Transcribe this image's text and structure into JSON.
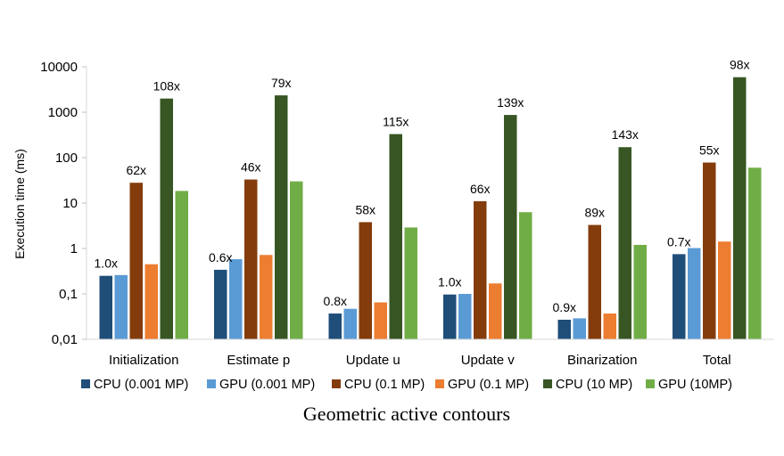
{
  "chart_data": {
    "type": "bar",
    "title": "",
    "caption": "Geometric active contours",
    "xlabel": "",
    "ylabel": "Execution time (ms)",
    "yscale": "log",
    "ylim": [
      0.01,
      10000
    ],
    "yticks": [
      0.01,
      0.1,
      1,
      10,
      100,
      1000,
      10000
    ],
    "ytick_labels": [
      "0,01",
      "0,1",
      "1",
      "10",
      "100",
      "1000",
      "10000"
    ],
    "grid": false,
    "legend_position": "bottom",
    "categories": [
      "Initialization",
      "Estimate p",
      "Update u",
      "Update v",
      "Binarization",
      "Total"
    ],
    "series": [
      {
        "name": "CPU (0.001 MP)",
        "color": "#1f4e79",
        "values": [
          0.25,
          0.34,
          0.037,
          0.097,
          0.027,
          0.75
        ]
      },
      {
        "name": "GPU (0.001 MP)",
        "color": "#5b9bd5",
        "values": [
          0.26,
          0.58,
          0.047,
          0.1,
          0.029,
          1.02
        ]
      },
      {
        "name": "CPU (0.1 MP)",
        "color": "#843c0c",
        "values": [
          28,
          33,
          3.8,
          11,
          3.3,
          78
        ]
      },
      {
        "name": "GPU (0.1 MP)",
        "color": "#ed7d31",
        "values": [
          0.45,
          0.72,
          0.065,
          0.17,
          0.037,
          1.42
        ]
      },
      {
        "name": "CPU (10 MP)",
        "color": "#375623",
        "values": [
          2000,
          2350,
          330,
          870,
          170,
          5900
        ]
      },
      {
        "name": "GPU (10MP)",
        "color": "#70ad47",
        "values": [
          18.5,
          30,
          2.9,
          6.3,
          1.2,
          60
        ]
      }
    ],
    "speedup_labels": [
      {
        "category": 0,
        "series": 0,
        "text": "1.0x"
      },
      {
        "category": 0,
        "series": 2,
        "text": "62x"
      },
      {
        "category": 0,
        "series": 4,
        "text": "108x"
      },
      {
        "category": 1,
        "series": 0,
        "text": "0.6x"
      },
      {
        "category": 1,
        "series": 2,
        "text": "46x"
      },
      {
        "category": 1,
        "series": 4,
        "text": "79x"
      },
      {
        "category": 2,
        "series": 0,
        "text": "0.8x"
      },
      {
        "category": 2,
        "series": 2,
        "text": "58x"
      },
      {
        "category": 2,
        "series": 4,
        "text": "115x"
      },
      {
        "category": 3,
        "series": 0,
        "text": "1.0x"
      },
      {
        "category": 3,
        "series": 2,
        "text": "66x"
      },
      {
        "category": 3,
        "series": 4,
        "text": "139x"
      },
      {
        "category": 4,
        "series": 0,
        "text": "0.9x"
      },
      {
        "category": 4,
        "series": 2,
        "text": "89x"
      },
      {
        "category": 4,
        "series": 4,
        "text": "143x"
      },
      {
        "category": 5,
        "series": 0,
        "text": "0.7x"
      },
      {
        "category": 5,
        "series": 2,
        "text": "55x"
      },
      {
        "category": 5,
        "series": 4,
        "text": "98x"
      }
    ]
  }
}
